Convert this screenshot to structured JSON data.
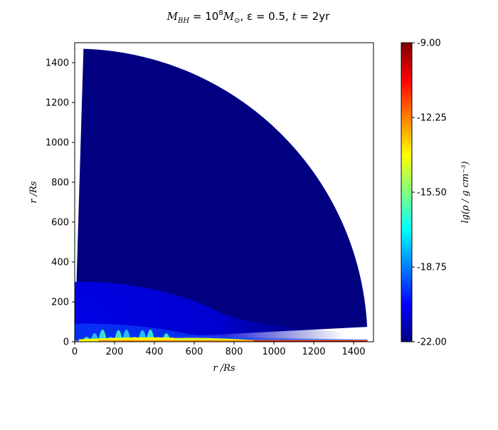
{
  "chart_data": {
    "type": "heatmap",
    "title_parts": {
      "M": "M",
      "BH": "BH",
      "eq1": " = 10",
      "exp8": "8",
      "Msun": "M",
      "sun": "⊙",
      "eps": ", ε = 0.5, ",
      "t": "t",
      "eq2": " = 2yr"
    },
    "xlabel": "r /Rs",
    "ylabel": "r /Rs",
    "xlim": [
      0,
      1500
    ],
    "ylim": [
      0,
      1500
    ],
    "x_ticks": [
      "0",
      "200",
      "400",
      "600",
      "800",
      "1000",
      "1200",
      "1400"
    ],
    "y_ticks": [
      "0",
      "200",
      "400",
      "600",
      "800",
      "1000",
      "1200",
      "1400"
    ],
    "grid": false,
    "domain": {
      "shape": "quarter-annulus wedge",
      "inner_radius": 30,
      "outer_radius": 1470,
      "theta_min_deg": 2.9,
      "theta_max_deg": 90
    },
    "colorbar": {
      "label": "lg(ρ / g cm⁻³)",
      "min": -22.0,
      "max": -9.0,
      "ticks": [
        "-9.00",
        "-12.25",
        "-15.50",
        "-18.75",
        "-22.00"
      ],
      "colormap": "jet",
      "colors": [
        "#00007f",
        "#0000ff",
        "#00ffff",
        "#ffff00",
        "#ff0000",
        "#7f0000"
      ]
    },
    "regions": {
      "background_level": -22.0,
      "envelope_level": -20.5,
      "envelope_height": 300,
      "disk_level": -14.0,
      "disk_extent_r": 1470,
      "equator_level": -10.0
    }
  }
}
